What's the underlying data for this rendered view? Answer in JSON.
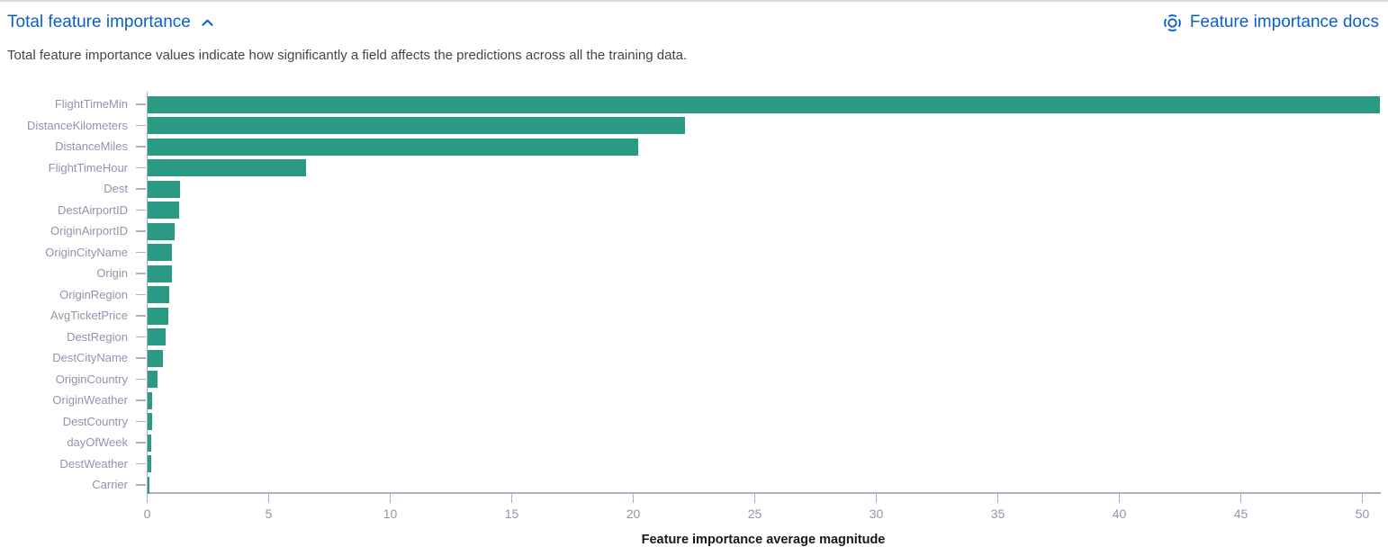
{
  "header": {
    "title": "Total feature importance",
    "docs_link": "Feature importance docs"
  },
  "description": "Total feature importance values indicate how significantly a field affects the predictions across all the training data.",
  "colors": {
    "bar": "#2a9a85",
    "link": "#0b5fcd",
    "axis_label": "#8e96ab",
    "axis_line": "#aab1c3",
    "text": "#42454f",
    "top_border": "#d3dae6"
  },
  "chart_data": {
    "type": "bar",
    "orientation": "horizontal",
    "title": "Total feature importance",
    "categories": [
      "FlightTimeMin",
      "DistanceKilometers",
      "DistanceMiles",
      "FlightTimeHour",
      "Dest",
      "DestAirportID",
      "OriginAirportID",
      "OriginCityName",
      "Origin",
      "OriginRegion",
      "AvgTicketPrice",
      "DestRegion",
      "DestCityName",
      "OriginCountry",
      "OriginWeather",
      "DestCountry",
      "dayOfWeek",
      "DestWeather",
      "Carrier"
    ],
    "values": [
      50.7,
      22.1,
      20.2,
      6.5,
      1.33,
      1.3,
      1.11,
      1.0,
      1.0,
      0.89,
      0.85,
      0.75,
      0.63,
      0.41,
      0.2,
      0.2,
      0.16,
      0.14,
      0.07
    ],
    "xlabel": "Feature importance average magnitude",
    "ylabel": "",
    "x_ticks": [
      0,
      5,
      10,
      15,
      20,
      25,
      30,
      35,
      40,
      45,
      50
    ],
    "xlim": [
      0,
      50.7
    ],
    "grid": false,
    "legend": false
  }
}
